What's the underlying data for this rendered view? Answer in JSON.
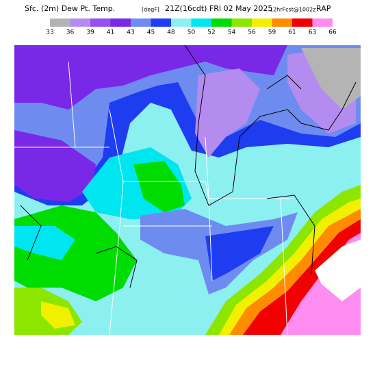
{
  "header": {
    "title": "Sfc. (2m) Dew Pt. Temp.",
    "units": "[degF]",
    "valid": "21Z(16cdt) FRI 02 May 2025",
    "forecast": "12hrFcst@1002z",
    "model": "RAP"
  },
  "legend": {
    "labels": [
      33,
      36,
      39,
      41,
      43,
      45,
      48,
      50,
      52,
      54,
      56,
      59,
      61,
      63,
      66
    ],
    "colors": [
      "#b4b4b4",
      "#b48cf0",
      "#9650f0",
      "#7828e6",
      "#6e8cf0",
      "#1e3cf0",
      "#8cf0f0",
      "#00e6f0",
      "#00dc00",
      "#8ce600",
      "#f0f000",
      "#ff8c00",
      "#f00000",
      "#ff8cf0"
    ]
  }
}
